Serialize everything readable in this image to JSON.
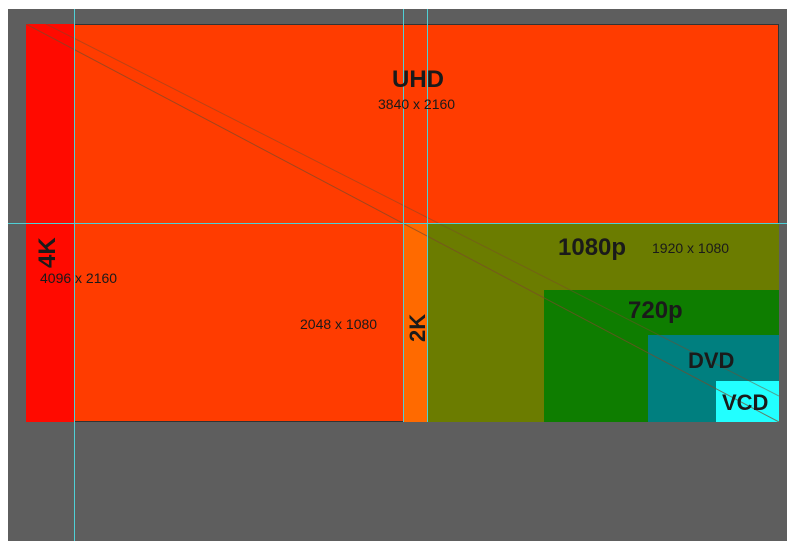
{
  "resolutions": {
    "uhd": {
      "name": "UHD",
      "dims": "3840 x 2160"
    },
    "k4": {
      "name": "4K",
      "dims": "4096 x 2160"
    },
    "k2": {
      "name": "2K",
      "dims": "2048 x 1080"
    },
    "p1080": {
      "name": "1080p",
      "dims": "1920 x 1080"
    },
    "p720": {
      "name": "720p"
    },
    "dvd": {
      "name": "DVD"
    },
    "vcd": {
      "name": "VCD"
    }
  },
  "colors": {
    "background": "#5e5e5e",
    "uhd": "#ff3c00",
    "k4": "#ff0a00",
    "k2": "#ff6a00",
    "p1080": "#6b7c00",
    "p720": "#0e7d00",
    "dvd": "#007f7f",
    "vcd": "#22ffff",
    "guide": "#4fd0d6"
  }
}
